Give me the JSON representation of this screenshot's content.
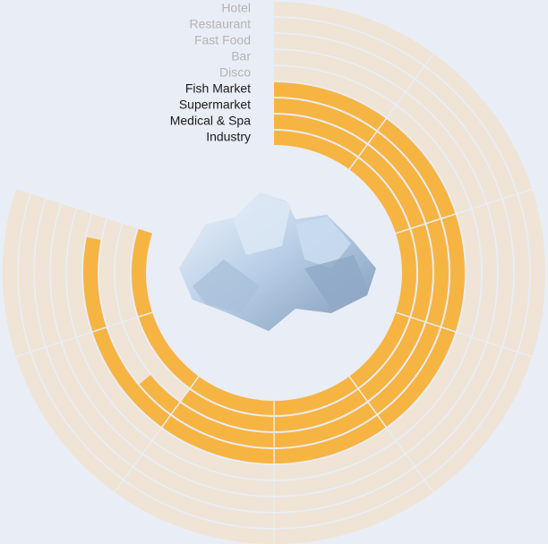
{
  "chart_data": {
    "type": "radial_bar",
    "categories": [
      "Hotel",
      "Restaurant",
      "Fast Food",
      "Bar",
      "Disco",
      "Fish Market",
      "Supermarket",
      "Medical & Spa",
      "Industry"
    ],
    "values": [
      0,
      0,
      0,
      0,
      0,
      97.5,
      80,
      75,
      100
    ],
    "ylim": [
      0,
      100
    ],
    "color": "#f6b443",
    "track_color": "#efe4d5"
  }
}
